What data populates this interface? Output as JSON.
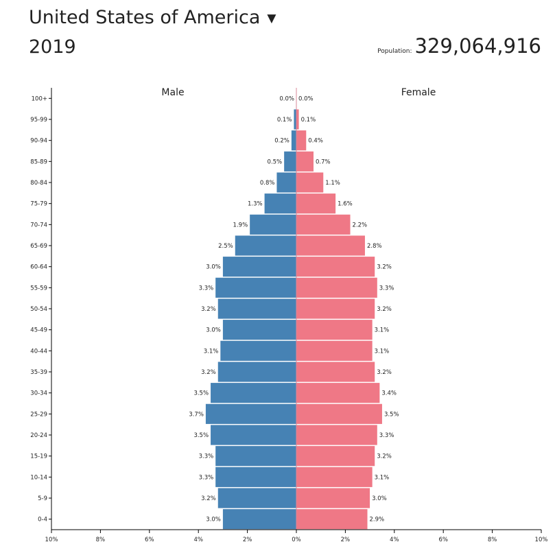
{
  "header": {
    "country": "United States of America",
    "dropdown_icon": "caret-down-icon",
    "year": "2019",
    "population_label": "Population:",
    "population_value": "329,064,916"
  },
  "colors": {
    "male": "#4682b4",
    "female": "#ef7886",
    "axis": "#000000",
    "center_line": "#d9889a"
  },
  "chart_data": {
    "type": "bar",
    "orientation": "horizontal",
    "title": "United States of America 2019",
    "legend": [
      "Male",
      "Female"
    ],
    "categories": [
      "0-4",
      "5-9",
      "10-14",
      "15-19",
      "20-24",
      "25-29",
      "30-34",
      "35-39",
      "40-44",
      "45-49",
      "50-54",
      "55-59",
      "60-64",
      "65-69",
      "70-74",
      "75-79",
      "80-84",
      "85-89",
      "90-94",
      "95-99",
      "100+"
    ],
    "series": [
      {
        "name": "Male",
        "values": [
          3.0,
          3.2,
          3.3,
          3.3,
          3.5,
          3.7,
          3.5,
          3.2,
          3.1,
          3.0,
          3.2,
          3.3,
          3.0,
          2.5,
          1.9,
          1.3,
          0.8,
          0.5,
          0.2,
          0.1,
          0.0
        ],
        "labels": [
          "3.0%",
          "3.2%",
          "3.3%",
          "3.3%",
          "3.5%",
          "3.7%",
          "3.5%",
          "3.2%",
          "3.1%",
          "3.0%",
          "3.2%",
          "3.3%",
          "3.0%",
          "2.5%",
          "1.9%",
          "1.3%",
          "0.8%",
          "0.5%",
          "0.2%",
          "0.1%",
          "0.0%"
        ]
      },
      {
        "name": "Female",
        "values": [
          2.9,
          3.0,
          3.1,
          3.2,
          3.3,
          3.5,
          3.4,
          3.2,
          3.1,
          3.1,
          3.2,
          3.3,
          3.2,
          2.8,
          2.2,
          1.6,
          1.1,
          0.7,
          0.4,
          0.1,
          0.0
        ],
        "labels": [
          "2.9%",
          "3.0%",
          "3.1%",
          "3.2%",
          "3.3%",
          "3.5%",
          "3.4%",
          "3.2%",
          "3.1%",
          "3.1%",
          "3.2%",
          "3.3%",
          "3.2%",
          "2.8%",
          "2.2%",
          "1.6%",
          "1.1%",
          "0.7%",
          "0.4%",
          "0.1%",
          "0.0%"
        ]
      }
    ],
    "xlim": [
      -10,
      10
    ],
    "xticks": [
      "10%",
      "8%",
      "6%",
      "4%",
      "2%",
      "0%",
      "2%",
      "4%",
      "6%",
      "8%",
      "10%"
    ],
    "xlabel": "",
    "ylabel": ""
  }
}
